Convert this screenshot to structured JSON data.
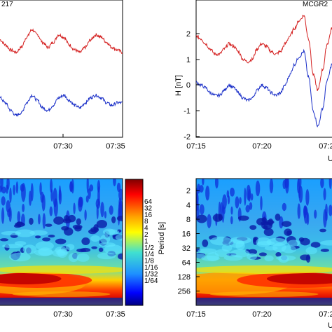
{
  "chart_data": [
    {
      "type": "line",
      "panel": "top-left",
      "title": "217",
      "xlabel": "",
      "ylabel": "",
      "x_ticks": [
        "07:30",
        "07:35"
      ],
      "series": [
        {
          "color": "#d42020",
          "values": [
            1.7,
            1.5,
            1.3,
            1.2,
            1.4,
            1.8,
            2.1,
            1.9,
            1.6,
            1.4,
            1.6,
            1.9,
            1.8,
            1.5,
            1.3,
            1.2,
            1.4,
            1.7,
            1.9,
            1.8,
            1.6,
            1.4,
            1.3,
            1.2
          ]
        },
        {
          "color": "#1a2fc8",
          "values": [
            -0.6,
            -0.8,
            -1.1,
            -1.3,
            -1.2,
            -0.8,
            -0.5,
            -0.7,
            -1.0,
            -1.1,
            -0.9,
            -0.6,
            -0.5,
            -0.7,
            -0.9,
            -1.0,
            -0.8,
            -0.6,
            -0.5,
            -0.6,
            -0.8,
            -0.9,
            -0.8,
            -0.8
          ]
        }
      ]
    },
    {
      "type": "line",
      "panel": "top-right",
      "title": "MCGR2",
      "ylabel": "H [nT]",
      "xlabel": "U",
      "ylim": [
        -2,
        3
      ],
      "y_ticks": [
        "2",
        "1",
        "0",
        "-1",
        "-2"
      ],
      "x_ticks": [
        "07:15",
        "07:20",
        "07:2"
      ],
      "series": [
        {
          "color": "#d42020",
          "values": [
            1.9,
            1.8,
            1.6,
            1.4,
            1.2,
            1.2,
            1.4,
            1.6,
            1.5,
            1.3,
            1.0,
            0.9,
            1.0,
            1.4,
            1.6,
            1.5,
            1.3,
            1.2,
            1.3,
            1.6,
            1.9,
            2.2,
            2.5,
            2.7,
            1.8,
            0.4,
            -0.2,
            0.6,
            1.6,
            2.2
          ]
        },
        {
          "color": "#1a2fc8",
          "values": [
            0.1,
            0.0,
            -0.1,
            -0.3,
            -0.4,
            -0.4,
            -0.2,
            0.0,
            -0.1,
            -0.3,
            -0.5,
            -0.6,
            -0.5,
            -0.2,
            0.0,
            -0.1,
            -0.3,
            -0.4,
            -0.3,
            0.0,
            0.4,
            0.8,
            1.1,
            1.3,
            0.3,
            -1.0,
            -1.6,
            -0.9,
            0.2,
            0.8
          ]
        }
      ]
    },
    {
      "type": "heatmap",
      "panel": "bottom-left",
      "x_ticks": [
        "07:30",
        "07:35"
      ],
      "colorbar_labels": [
        "64",
        "32",
        "16",
        "8",
        "4",
        "2",
        "1",
        "1/2",
        "1/4",
        "1/8",
        "1/16",
        "1/32",
        "1/64"
      ]
    },
    {
      "type": "heatmap",
      "panel": "bottom-right",
      "ylabel": "Period [s]",
      "xlabel": "U",
      "y_ticks": [
        "2",
        "4",
        "8",
        "16",
        "32",
        "64",
        "128",
        "256"
      ],
      "x_ticks": [
        "07:15",
        "07:20",
        "07:2"
      ]
    }
  ],
  "colors": {
    "red_line": "#d42020",
    "blue_line": "#1a2fc8"
  }
}
